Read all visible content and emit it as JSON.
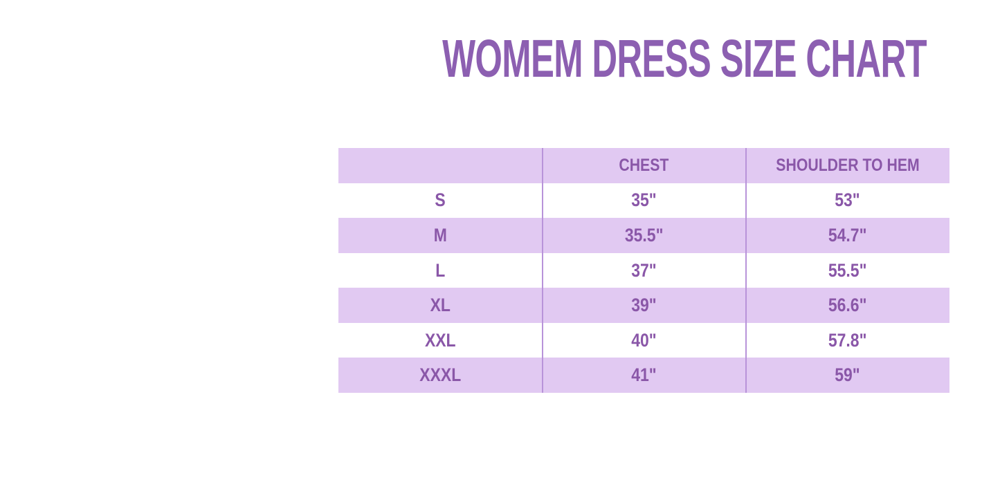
{
  "title": "WOMEM DRESS SIZE CHART",
  "colors": {
    "accent": "#8a57a8",
    "title_color": "#8c5fb1",
    "row_fill": "#e1c9f2",
    "divider": "#b893d9",
    "page_bg": "#ffffff"
  },
  "chart_data": {
    "type": "table",
    "title": "WOMEM DRESS SIZE CHART",
    "columns": [
      "",
      "CHEST",
      "SHOULDER TO HEM"
    ],
    "rows": [
      [
        "S",
        "35\"",
        "53\""
      ],
      [
        "M",
        "35.5\"",
        "54.7\""
      ],
      [
        "L",
        "37\"",
        "55.5\""
      ],
      [
        "XL",
        "39\"",
        "56.6\""
      ],
      [
        "XXL",
        "40\"",
        "57.8\""
      ],
      [
        "XXXL",
        "41\"",
        "59\""
      ]
    ],
    "layout": {
      "striped": true,
      "stripe_color": "#e1c9f2",
      "header_fill": "#e1c9f2",
      "grid": "vertical-dividers-only"
    }
  }
}
